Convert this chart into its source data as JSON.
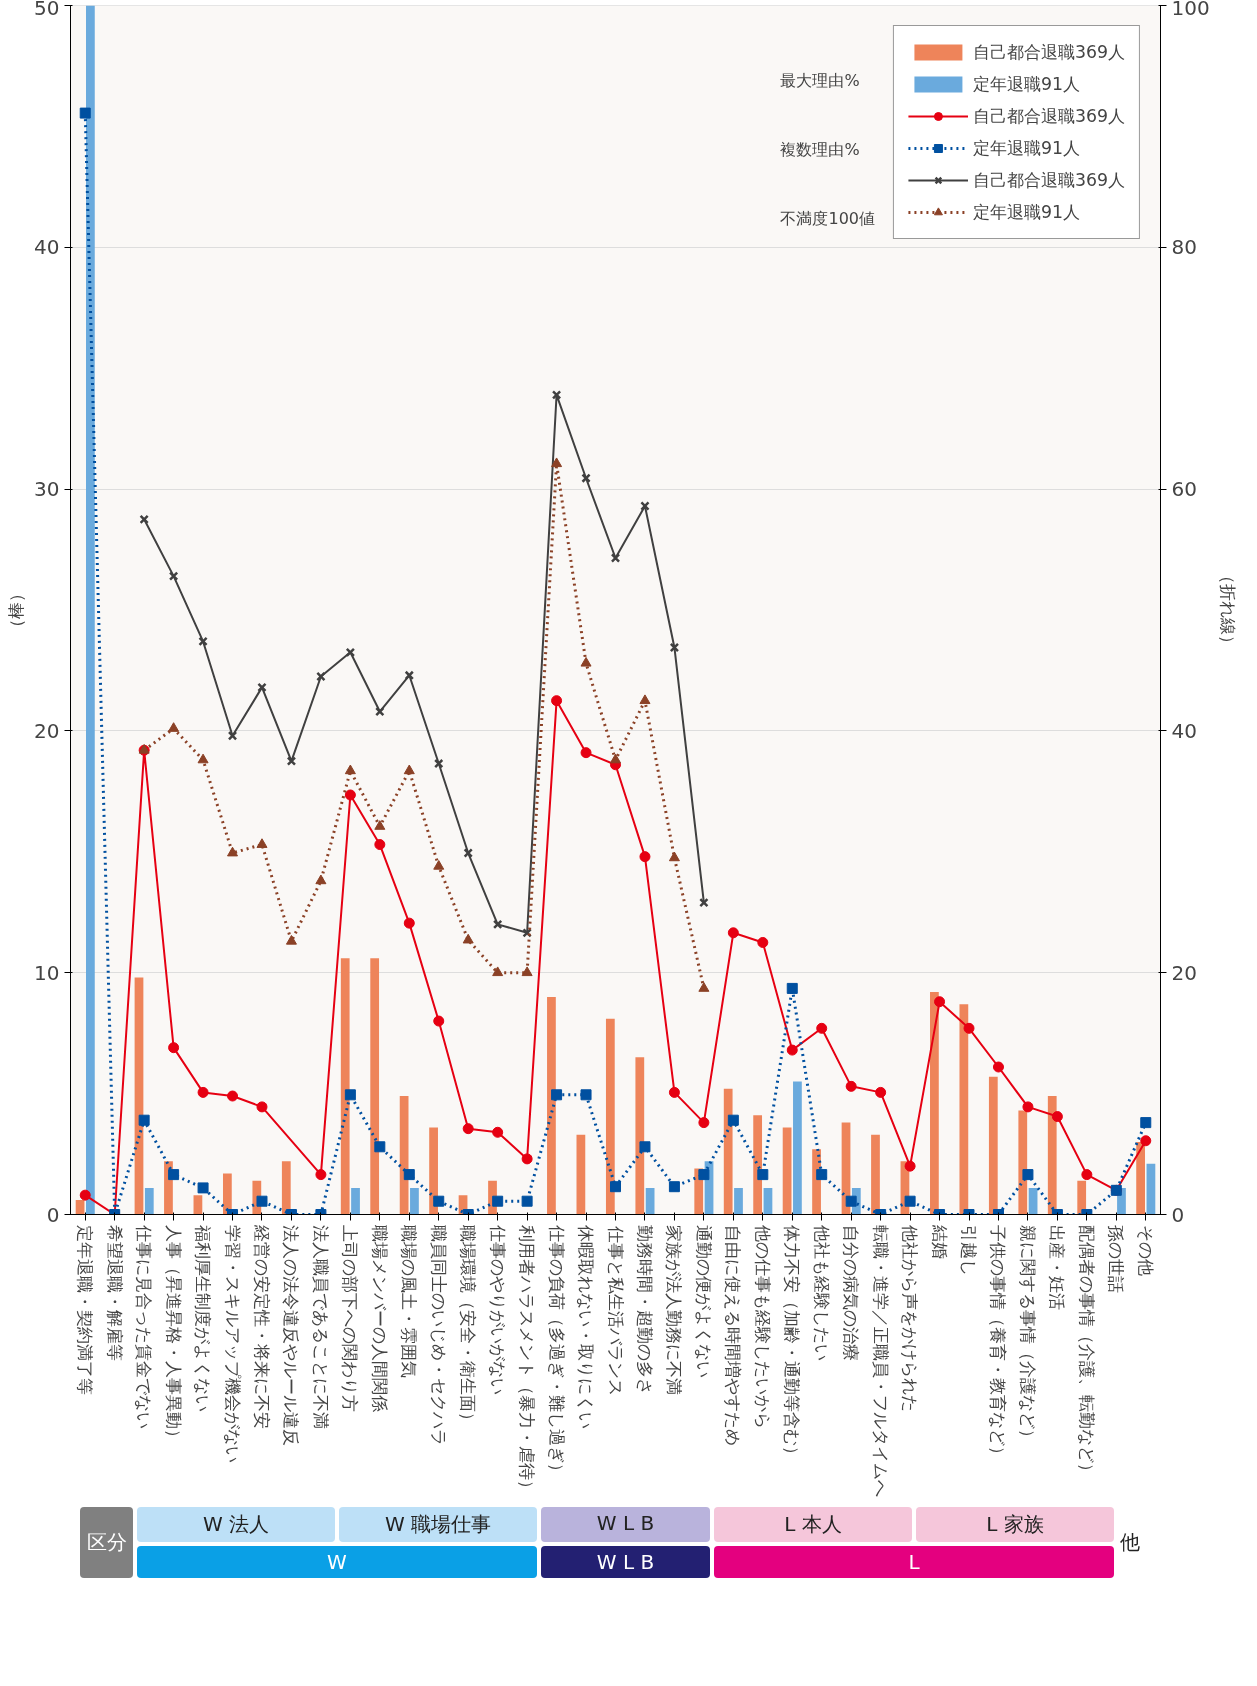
{
  "chart_data": {
    "type": "bar",
    "ylabel": "（棒）",
    "y2label": "（折れ線）",
    "categories": [
      "定年退職・契約満了等",
      "希望退職・解雇等",
      "仕事に見合った賃金でない",
      "人事（昇進昇格・人事異動）",
      "福利厚生制度がよくない",
      "学習・スキルアップ機会がない",
      "経営の安定性・将来に不安",
      "法人の法令違反やルール違反",
      "法人職員であることに不満",
      "上司の部下への関わり方",
      "職場メンバーの人間関係",
      "職場の風土・雰囲気",
      "職員同士のいじめ・セクハラ",
      "職場環境（安全・衛生面）",
      "仕事のやりがいがない",
      "利用者ハラスメント（暴力・虐待）",
      "仕事の負荷（多過ぎ・難し過ぎ）",
      "休暇取れない・取りにくい",
      "仕事と私生活バランス",
      "勤務時間・超勤の多さ",
      "家族が法人勤務に不満",
      "通勤の便がよくない",
      "自由に使える時間増やすため",
      "他の仕事も経験したいから",
      "体力不安（加齢・通勤等含む）",
      "他社も経験したい",
      "自分の病気の治療",
      "転職・進学／正職員・フルタイムへ",
      "他社から声をかけられた",
      "結婚",
      "引越し",
      "子供の事情（養育・教育など）",
      "親に関する事情（介護など）",
      "出産・妊活",
      "配偶者の事情（介護、転勤など）",
      "孫の世話",
      "その他"
    ],
    "series": [
      {
        "name": "自己都合退職369人",
        "color": "#ee845a",
        "values": [
          0.6,
          null,
          9.8,
          2.2,
          0.8,
          1.7,
          1.4,
          2.2,
          null,
          10.6,
          10.6,
          4.9,
          3.6,
          0.8,
          1.4,
          null,
          9.0,
          3.3,
          8.1,
          6.5,
          null,
          1.9,
          5.2,
          4.1,
          3.6,
          2.7,
          3.8,
          3.3,
          2.2,
          9.2,
          8.7,
          5.7,
          4.3,
          4.9,
          1.4,
          null,
          3.0
        ]
      },
      {
        "name": "定年退職91人",
        "color": "#6aaadd",
        "values": [
          50,
          null,
          1.1,
          null,
          null,
          null,
          null,
          null,
          null,
          1.1,
          null,
          1.1,
          null,
          null,
          null,
          null,
          null,
          null,
          null,
          1.1,
          null,
          2.2,
          1.1,
          1.1,
          5.5,
          null,
          1.1,
          null,
          null,
          null,
          null,
          null,
          1.1,
          null,
          null,
          1.1,
          2.1
        ]
      },
      {
        "name": "自己都合退職369人",
        "type": "line",
        "axis": "y2",
        "color": "#e60012",
        "marker": "circle",
        "line_style": "solid",
        "values": [
          1.6,
          0,
          38.4,
          13.8,
          10.1,
          9.8,
          8.9,
          null,
          3.3,
          34.7,
          30.6,
          24.1,
          16.0,
          7.1,
          6.8,
          4.6,
          42.5,
          38.2,
          37.2,
          29.6,
          10.1,
          7.6,
          23.3,
          22.5,
          13.6,
          15.4,
          10.6,
          10.1,
          4.0,
          17.6,
          15.4,
          12.2,
          8.9,
          8.1,
          3.3,
          2.0,
          6.1
        ]
      },
      {
        "name": "定年退職91人",
        "type": "line",
        "axis": "y2",
        "color": "#0050a0",
        "marker": "square",
        "line_style": "dotted",
        "values": [
          91.1,
          0,
          7.8,
          3.3,
          2.2,
          0,
          1.1,
          0,
          0,
          9.9,
          5.6,
          3.3,
          1.1,
          0,
          1.1,
          1.1,
          9.9,
          9.9,
          2.3,
          5.6,
          2.3,
          3.3,
          7.8,
          3.3,
          18.7,
          3.3,
          1.1,
          0,
          1.1,
          0,
          0,
          0,
          3.3,
          0,
          0,
          2.0,
          7.6
        ]
      },
      {
        "name": "自己都合退職369人",
        "type": "line",
        "axis": "y2",
        "color": "#404040",
        "marker": "cross",
        "line_style": "solid",
        "values": [
          null,
          null,
          57.5,
          52.8,
          47.4,
          39.6,
          43.6,
          37.5,
          44.5,
          46.5,
          41.6,
          44.6,
          37.3,
          29.9,
          24.0,
          23.3,
          67.8,
          60.9,
          54.3,
          58.6,
          46.9,
          25.8,
          null,
          null,
          null,
          null,
          null,
          null,
          null,
          null,
          null,
          null,
          null,
          null,
          null,
          null,
          null
        ]
      },
      {
        "name": "定年退職91人",
        "type": "line",
        "axis": "y2",
        "color": "#8b4126",
        "marker": "triangle",
        "line_style": "dotted",
        "values": [
          null,
          null,
          38.4,
          40.2,
          37.6,
          29.9,
          30.6,
          22.6,
          27.6,
          36.7,
          32.1,
          36.7,
          28.8,
          22.7,
          20.0,
          20.0,
          62.1,
          45.6,
          37.6,
          42.5,
          29.5,
          18.7,
          null,
          null,
          null,
          null,
          null,
          null,
          null,
          null,
          null,
          null,
          null,
          null,
          null,
          null,
          null
        ]
      }
    ],
    "ylim": [
      0,
      50
    ],
    "yticks": [
      0,
      10,
      20,
      30,
      40,
      50
    ],
    "y2lim": [
      0,
      100
    ],
    "y2ticks": [
      0,
      20,
      40,
      60,
      80,
      100
    ],
    "grid": "y",
    "legend": "top right",
    "annotations": [
      "最大理由%",
      "複数理由%",
      "不満度100値",
      "区分",
      "W 法人",
      "W 職場仕事",
      "W L B",
      "L 本人",
      "L 家族",
      "他",
      "W",
      "W L B",
      "L"
    ]
  }
}
